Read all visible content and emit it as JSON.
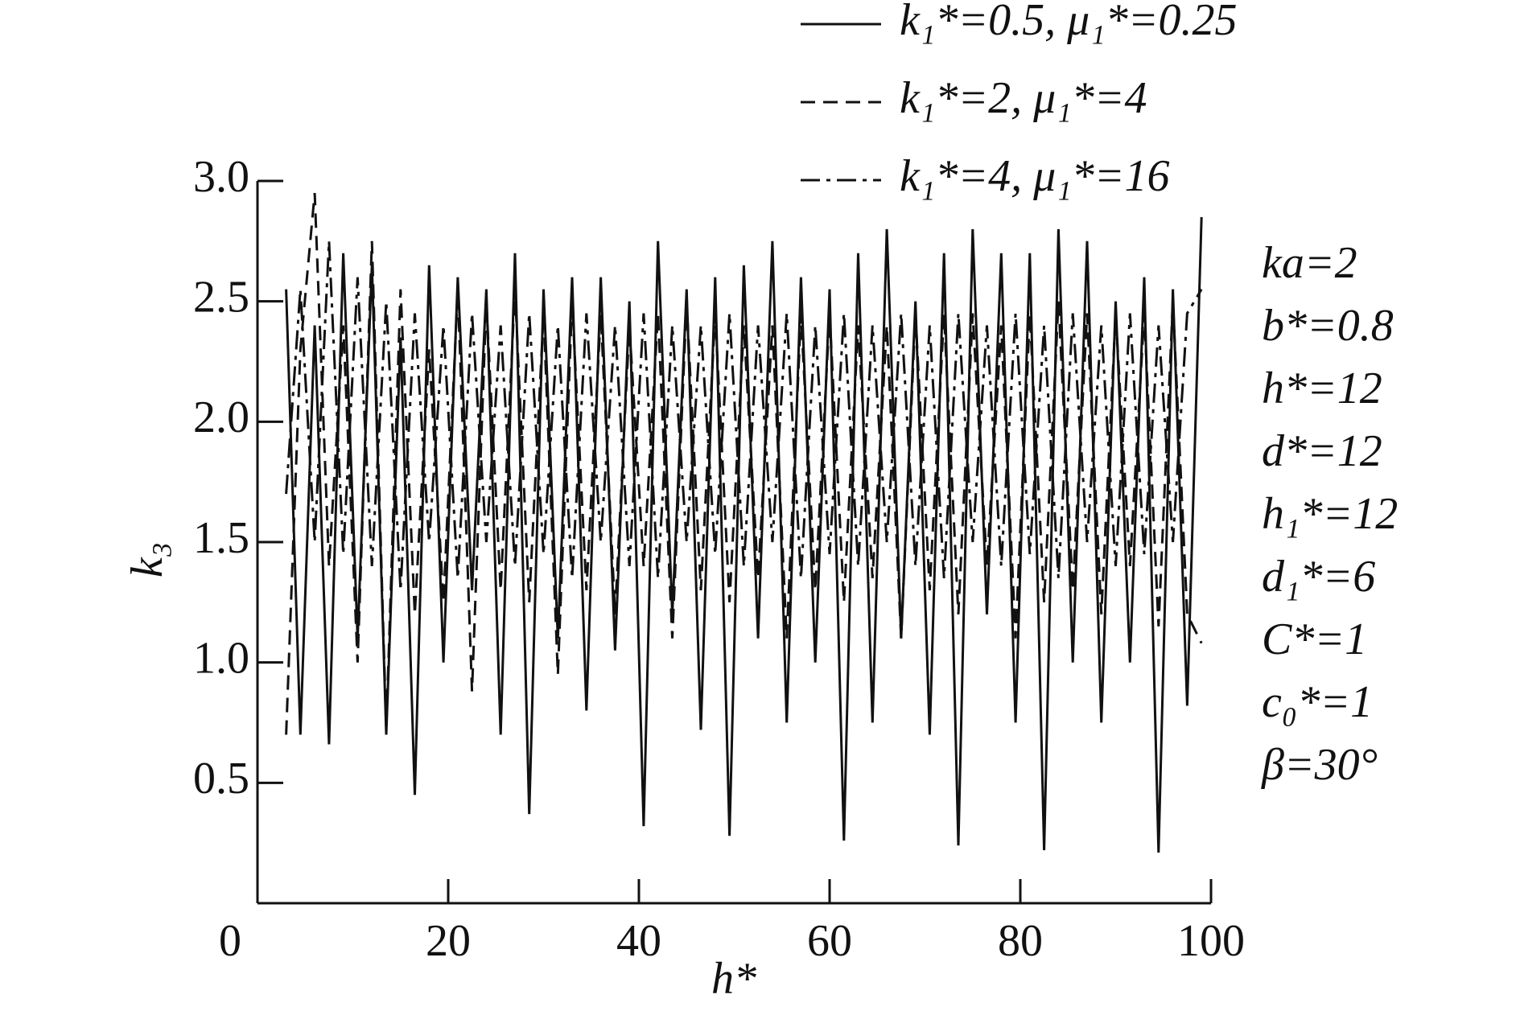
{
  "chart_data": {
    "type": "line",
    "x_label": "h*",
    "y_label": "k₃",
    "xlim": [
      0,
      100
    ],
    "ylim": [
      0,
      3
    ],
    "xticks": [
      0,
      20,
      40,
      60,
      80,
      100
    ],
    "yticks": [
      {
        "value": 0.5,
        "label": "0.5"
      },
      {
        "value": 1.0,
        "label": "1.0"
      },
      {
        "value": 1.5,
        "label": "1.5"
      },
      {
        "value": 2.0,
        "label": "2.0"
      },
      {
        "value": 2.5,
        "label": "2.5"
      },
      {
        "value": 3.0,
        "label": "3.0"
      }
    ],
    "grid": false,
    "x": [
      3,
      4.5,
      6,
      7.5,
      9,
      10.5,
      12,
      13.5,
      15,
      16.5,
      18,
      19.5,
      21,
      22.5,
      24,
      25.5,
      27,
      28.5,
      30,
      31.5,
      33,
      34.5,
      36,
      37.5,
      39,
      40.5,
      42,
      43.5,
      45,
      46.5,
      48,
      49.5,
      51,
      52.5,
      54,
      55.5,
      57,
      58.5,
      60,
      61.5,
      63,
      64.5,
      66,
      67.5,
      69,
      70.5,
      72,
      73.5,
      75,
      76.5,
      78,
      79.5,
      81,
      82.5,
      84,
      85.5,
      87,
      88.5,
      90,
      91.5,
      93,
      94.5,
      96,
      97.5,
      99
    ],
    "series": [
      {
        "name": "k₁*=0.5, μ₁*=0.25",
        "color": "#111111",
        "linestyle": "solid",
        "values": [
          2.55,
          0.7,
          2.4,
          0.66,
          2.7,
          1.1,
          2.65,
          0.7,
          2.35,
          0.45,
          2.65,
          1.0,
          2.6,
          1.3,
          2.55,
          0.7,
          2.7,
          0.37,
          2.55,
          1.1,
          2.6,
          0.8,
          2.6,
          1.05,
          2.5,
          0.32,
          2.75,
          1.2,
          2.55,
          0.72,
          2.6,
          0.28,
          2.65,
          1.1,
          2.75,
          0.75,
          2.6,
          1.0,
          2.55,
          0.26,
          2.7,
          0.75,
          2.8,
          1.1,
          2.5,
          0.7,
          2.7,
          0.24,
          2.8,
          1.2,
          2.7,
          0.75,
          2.7,
          0.22,
          2.8,
          1.0,
          2.75,
          0.75,
          2.5,
          1.0,
          2.6,
          0.21,
          2.55,
          0.82,
          2.85
        ]
      },
      {
        "name": "k₁*=2, μ₁*=4",
        "color": "#111111",
        "linestyle": "dashed",
        "values": [
          0.7,
          2.3,
          2.95,
          1.4,
          2.4,
          1.0,
          2.75,
          0.72,
          2.55,
          1.2,
          2.3,
          1.25,
          2.55,
          0.88,
          2.5,
          1.3,
          2.55,
          1.25,
          2.45,
          0.95,
          2.5,
          1.3,
          2.45,
          1.2,
          2.4,
          1.4,
          2.45,
          1.1,
          2.5,
          1.3,
          2.45,
          1.25,
          2.4,
          1.35,
          2.4,
          1.1,
          2.45,
          1.3,
          2.45,
          1.25,
          2.4,
          1.35,
          2.4,
          1.1,
          2.45,
          1.3,
          2.45,
          1.2,
          2.45,
          1.4,
          2.4,
          1.1,
          2.45,
          1.25,
          2.5,
          1.3,
          2.45,
          1.2,
          2.45,
          1.4,
          2.45,
          1.15,
          2.5,
          1.2,
          1.08
        ]
      },
      {
        "name": "k₁*=4, μ₁*=16",
        "color": "#111111",
        "linestyle": "dashdot",
        "values": [
          1.7,
          2.55,
          1.5,
          2.75,
          1.45,
          2.6,
          1.4,
          2.5,
          1.3,
          2.45,
          1.5,
          2.4,
          1.35,
          2.45,
          1.5,
          2.4,
          1.4,
          2.45,
          1.45,
          2.4,
          1.35,
          2.45,
          1.5,
          2.4,
          1.4,
          2.45,
          1.35,
          2.4,
          1.5,
          2.4,
          1.45,
          2.45,
          1.4,
          2.4,
          1.5,
          2.45,
          1.35,
          2.4,
          1.45,
          2.45,
          1.4,
          2.4,
          1.5,
          2.45,
          1.4,
          2.4,
          1.35,
          2.45,
          1.5,
          2.4,
          1.4,
          2.45,
          1.45,
          2.4,
          1.35,
          2.45,
          1.5,
          2.4,
          1.4,
          2.45,
          1.45,
          2.4,
          1.5,
          2.45,
          2.55
        ]
      }
    ],
    "annotations": [
      "ka=2",
      "b*=0.8",
      "h*=12",
      "d*=12",
      "h₁*=12",
      "d₁*=6",
      "C*=1",
      "c₀*=1",
      "β=30°"
    ]
  }
}
